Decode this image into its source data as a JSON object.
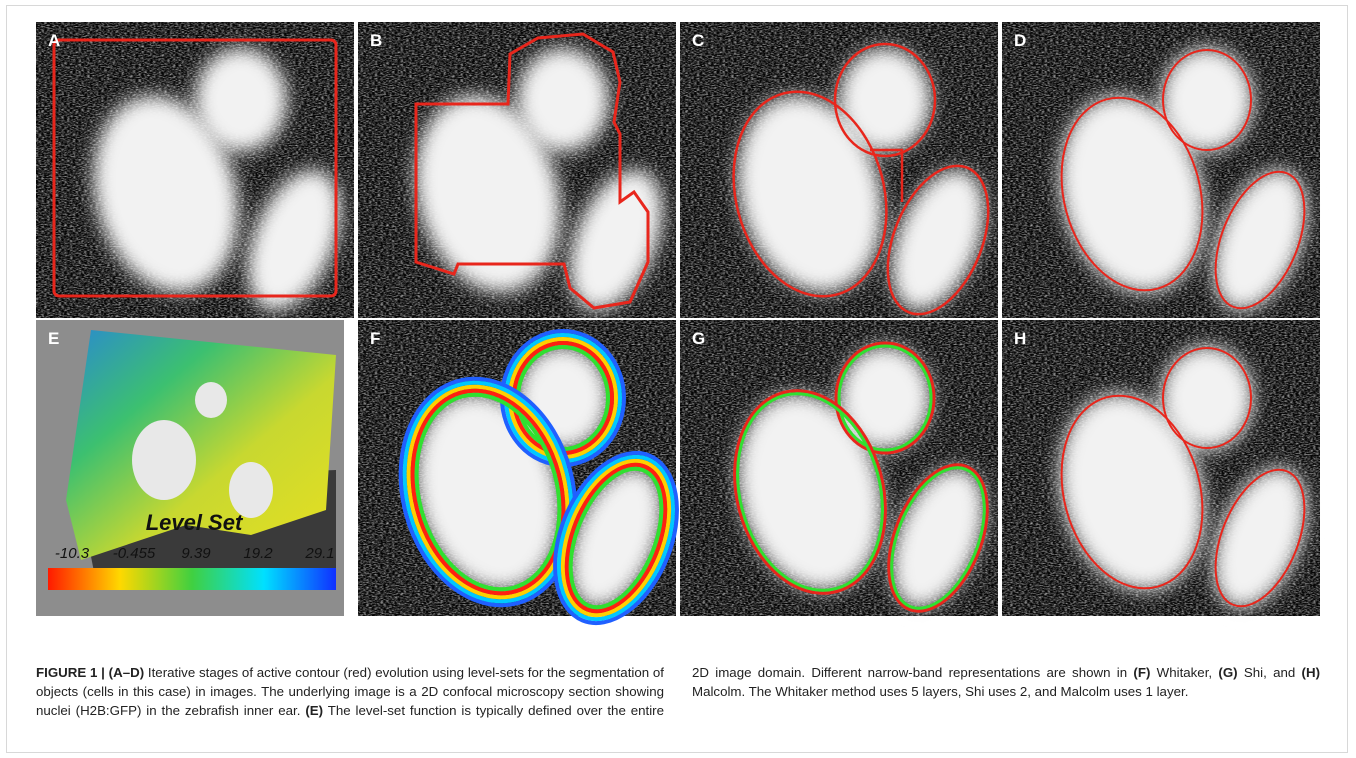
{
  "panels": [
    {
      "label": "A"
    },
    {
      "label": "B"
    },
    {
      "label": "C"
    },
    {
      "label": "D"
    },
    {
      "label": "E"
    },
    {
      "label": "F"
    },
    {
      "label": "G"
    },
    {
      "label": "H"
    }
  ],
  "level_set": {
    "title": "Level Set",
    "ticks": [
      "-10.3",
      "-0.455",
      "9.39",
      "19.2",
      "29.1"
    ]
  },
  "caption": {
    "figure": "FIGURE 1 |",
    "segments": [
      " (A–D)",
      " Iterative stages of active contour (red) evolution using level-sets for the segmentation of objects (cells in this case) in images. The underlying image is a 2D confocal microscopy section showing nuclei (H2B:GFP) in the zebrafish inner ear. ",
      "(E)",
      " The level-set function is typically defined over the entire 2D image domain. Different narrow-band representations are shown in ",
      "(F)",
      " Whitaker, ",
      "(G)",
      " Shi, and ",
      "(H)",
      " Malcolm. The Whitaker method uses 5 layers, Shi uses 2, and Malcolm uses 1 layer."
    ]
  }
}
